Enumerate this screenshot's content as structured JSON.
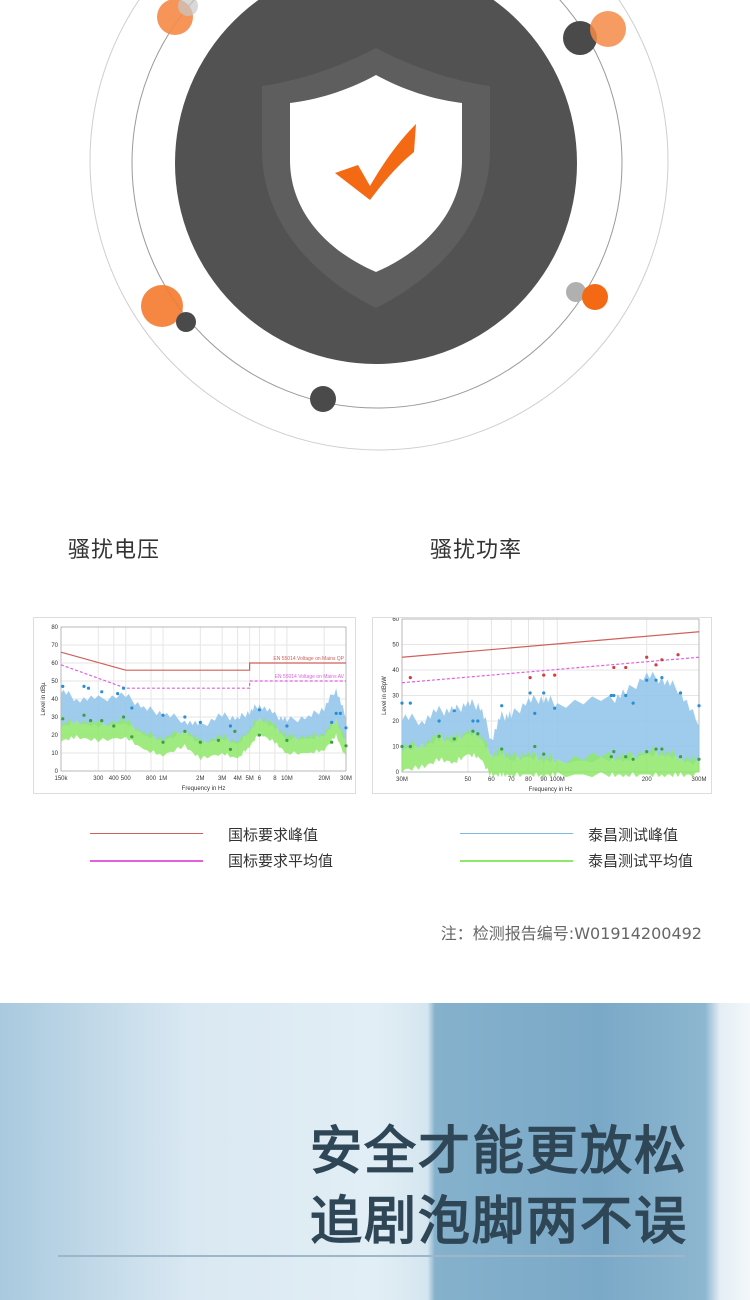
{
  "sections": {
    "voltage_title": "骚扰电压",
    "power_title": "骚扰功率"
  },
  "legend": {
    "limit_peak": {
      "label": "国标要求峰值",
      "color": "#d0605a"
    },
    "limit_avg": {
      "label": "国标要求平均值",
      "color": "#e060e0"
    },
    "test_peak": {
      "label": "泰昌测试峰值",
      "color": "#7fb8e0"
    },
    "test_avg": {
      "label": "泰昌测试平均值",
      "color": "#8ee86a"
    }
  },
  "note": "注：检测报告编号:W01914200492",
  "banner": {
    "line1": "安全才能更放松",
    "line2": "追剧泡脚两不误"
  },
  "hero": {
    "icon": "shield-check-icon",
    "dark": "#525252",
    "accent": "#f46a14"
  },
  "chart_data": [
    {
      "type": "area",
      "xscale": "log",
      "xlabel": "Frequency in Hz",
      "ylabel": "Level in dBµ",
      "xlim": [
        150000,
        30000000
      ],
      "ylim": [
        0,
        80
      ],
      "yticks": [
        0,
        10,
        20,
        30,
        40,
        50,
        60,
        70,
        80
      ],
      "xticks": [
        {
          "v": 150000,
          "l": "150k"
        },
        {
          "v": 300000,
          "l": "300"
        },
        {
          "v": 400000,
          "l": "400"
        },
        {
          "v": 500000,
          "l": "500"
        },
        {
          "v": 800000,
          "l": "800"
        },
        {
          "v": 1000000,
          "l": "1M"
        },
        {
          "v": 2000000,
          "l": "2M"
        },
        {
          "v": 3000000,
          "l": "3M"
        },
        {
          "v": 4000000,
          "l": "4M"
        },
        {
          "v": 5000000,
          "l": "5M"
        },
        {
          "v": 6000000,
          "l": "6"
        },
        {
          "v": 8000000,
          "l": "8"
        },
        {
          "v": 10000000,
          "l": "10M"
        },
        {
          "v": 20000000,
          "l": "20M"
        },
        {
          "v": 30000000,
          "l": "30M"
        }
      ],
      "grid": true,
      "limits": [
        {
          "name": "EN 55014 Voltage on Mains QP",
          "color": "#d0605a",
          "points": [
            [
              150000,
              66
            ],
            [
              500000,
              56
            ],
            [
              5000000,
              56
            ],
            [
              5000000,
              60
            ],
            [
              30000000,
              60
            ]
          ]
        },
        {
          "name": "EN 55014 Voltage on Mains AV",
          "color": "#e060e0",
          "dashed": true,
          "points": [
            [
              150000,
              59
            ],
            [
              500000,
              46
            ],
            [
              5000000,
              46
            ],
            [
              5000000,
              50
            ],
            [
              30000000,
              50
            ]
          ]
        }
      ],
      "series": [
        {
          "key": "peak",
          "color": "#8ec3ea",
          "x": [
            150000,
            200000,
            300000,
            500000,
            700000,
            1000000,
            1500000,
            2000000,
            3000000,
            4000000,
            5000000,
            6000000,
            8000000,
            10000000,
            15000000,
            20000000,
            25000000,
            30000000
          ],
          "y": [
            45,
            40,
            40,
            42,
            35,
            32,
            28,
            25,
            31,
            29,
            33,
            37,
            31,
            28,
            30,
            35,
            46,
            29
          ]
        },
        {
          "key": "avg",
          "color": "#8ee86a",
          "x": [
            150000,
            200000,
            300000,
            500000,
            700000,
            1000000,
            1500000,
            2000000,
            3000000,
            4000000,
            5000000,
            6000000,
            8000000,
            10000000,
            15000000,
            20000000,
            25000000,
            30000000
          ],
          "y": [
            26,
            28,
            26,
            28,
            21,
            18,
            23,
            16,
            19,
            16,
            23,
            30,
            25,
            19,
            19,
            21,
            29,
            16
          ]
        }
      ],
      "markers": {
        "peak": [
          [
            155000,
            47
          ],
          [
            230000,
            47
          ],
          [
            250000,
            46
          ],
          [
            320000,
            44
          ],
          [
            430000,
            43
          ],
          [
            480000,
            46
          ],
          [
            560000,
            35
          ],
          [
            1000000,
            31
          ],
          [
            1500000,
            30
          ],
          [
            2000000,
            27
          ],
          [
            3500000,
            25
          ],
          [
            6000000,
            34
          ],
          [
            10000000,
            25
          ],
          [
            23000000,
            27
          ],
          [
            25000000,
            32
          ],
          [
            27000000,
            32
          ],
          [
            30000000,
            24
          ]
        ],
        "avg": [
          [
            155000,
            29
          ],
          [
            230000,
            31
          ],
          [
            260000,
            28
          ],
          [
            320000,
            28
          ],
          [
            400000,
            25
          ],
          [
            480000,
            30
          ],
          [
            560000,
            19
          ],
          [
            1000000,
            16
          ],
          [
            1500000,
            22
          ],
          [
            2000000,
            16
          ],
          [
            2800000,
            17
          ],
          [
            3500000,
            12
          ],
          [
            3800000,
            22
          ],
          [
            6000000,
            20
          ],
          [
            10000000,
            17
          ],
          [
            23000000,
            16
          ],
          [
            30000000,
            14
          ]
        ]
      }
    },
    {
      "type": "area",
      "xscale": "log",
      "xlabel": "Frequency in Hz",
      "ylabel": "Level in dBpW",
      "xlim": [
        30000000,
        300000000
      ],
      "ylim": [
        0,
        60
      ],
      "yticks": [
        0,
        10,
        20,
        30,
        40,
        50,
        60
      ],
      "xticks": [
        {
          "v": 30000000,
          "l": "30M"
        },
        {
          "v": 50000000,
          "l": "50"
        },
        {
          "v": 60000000,
          "l": "60"
        },
        {
          "v": 70000000,
          "l": "70"
        },
        {
          "v": 80000000,
          "l": "80"
        },
        {
          "v": 90000000,
          "l": "90"
        },
        {
          "v": 100000000,
          "l": "100M"
        },
        {
          "v": 200000000,
          "l": "200"
        },
        {
          "v": 300000000,
          "l": "300M"
        }
      ],
      "grid": true,
      "limits": [
        {
          "name": "",
          "color": "#d0605a",
          "points": [
            [
              30000000,
              45
            ],
            [
              300000000,
              55
            ]
          ]
        },
        {
          "name": "",
          "color": "#e060e0",
          "dashed": true,
          "points": [
            [
              30000000,
              35
            ],
            [
              300000000,
              45
            ]
          ]
        }
      ],
      "series": [
        {
          "key": "peak",
          "color": "#8ec3ea",
          "x": [
            30000000,
            35000000,
            40000000,
            45000000,
            50000000,
            55000000,
            60000000,
            65000000,
            70000000,
            80000000,
            90000000,
            100000000,
            150000000,
            170000000,
            200000000,
            230000000,
            260000000,
            300000000
          ],
          "y": [
            22,
            20,
            24,
            24,
            27,
            26,
            13,
            22,
            22,
            28,
            29,
            27,
            28,
            31,
            38,
            36,
            32,
            18
          ]
        },
        {
          "key": "avg",
          "color": "#8ee86a",
          "x": [
            30000000,
            35000000,
            40000000,
            45000000,
            50000000,
            55000000,
            60000000,
            65000000,
            70000000,
            80000000,
            90000000,
            100000000,
            150000000,
            170000000,
            200000000,
            230000000,
            260000000,
            300000000
          ],
          "y": [
            10,
            11,
            14,
            13,
            16,
            15,
            7,
            8,
            6,
            7,
            6,
            5,
            6,
            6,
            8,
            8,
            6,
            4
          ]
        }
      ],
      "markers": {
        "peak": [
          [
            30000000,
            27
          ],
          [
            32000000,
            27
          ],
          [
            40000000,
            20
          ],
          [
            45000000,
            24
          ],
          [
            52000000,
            20
          ],
          [
            54000000,
            20
          ],
          [
            65000000,
            26
          ],
          [
            81000000,
            31
          ],
          [
            84000000,
            23
          ],
          [
            90000000,
            31
          ],
          [
            98000000,
            25
          ],
          [
            152000000,
            30
          ],
          [
            155000000,
            30
          ],
          [
            170000000,
            30
          ],
          [
            180000000,
            27
          ],
          [
            200000000,
            36
          ],
          [
            215000000,
            36
          ],
          [
            225000000,
            37
          ],
          [
            260000000,
            31
          ],
          [
            300000000,
            26
          ]
        ],
        "avg": [
          [
            30000000,
            10
          ],
          [
            32000000,
            10
          ],
          [
            40000000,
            14
          ],
          [
            45000000,
            13
          ],
          [
            52000000,
            16
          ],
          [
            54000000,
            15
          ],
          [
            65000000,
            9
          ],
          [
            84000000,
            10
          ],
          [
            90000000,
            7
          ],
          [
            152000000,
            6
          ],
          [
            155000000,
            8
          ],
          [
            170000000,
            6
          ],
          [
            180000000,
            5
          ],
          [
            200000000,
            8
          ],
          [
            215000000,
            9
          ],
          [
            225000000,
            9
          ],
          [
            260000000,
            6
          ],
          [
            300000000,
            5
          ]
        ],
        "qp": [
          [
            32000000,
            37
          ],
          [
            81000000,
            37
          ],
          [
            90000000,
            38
          ],
          [
            98000000,
            38
          ],
          [
            155000000,
            41
          ],
          [
            170000000,
            41
          ],
          [
            200000000,
            45
          ],
          [
            215000000,
            42
          ],
          [
            225000000,
            44
          ],
          [
            255000000,
            46
          ]
        ]
      }
    }
  ]
}
